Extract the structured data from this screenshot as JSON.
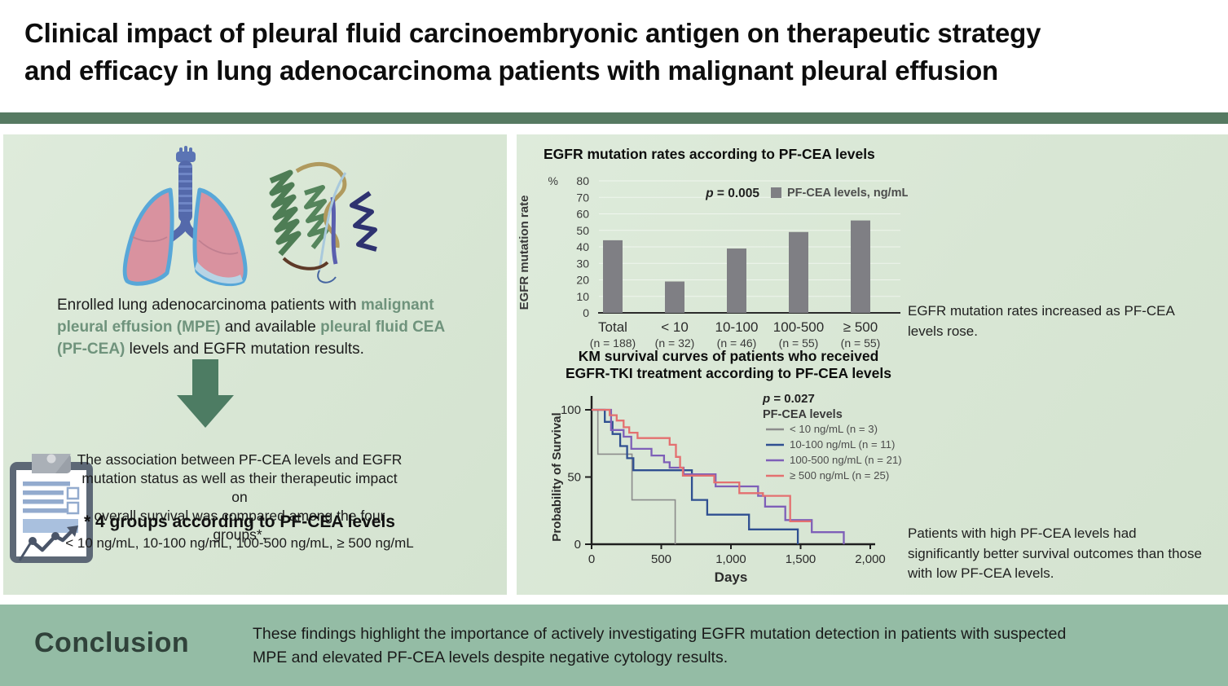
{
  "page_title": {
    "line1": "Clinical impact of pleural fluid carcinoembryonic antigen on therapeutic strategy",
    "line2": "and efficacy in lung adenocarcinoma patients with malignant pleural effusion"
  },
  "left_panel": {
    "enrollment": {
      "part1": "Enrolled lung adenocarcinoma patients with ",
      "highlight1": "malignant pleural effusion (MPE)",
      "part2": " and available ",
      "highlight2": "pleural fluid CEA (PF-CEA)",
      "part3": " levels and EGFR mutation results."
    },
    "association_lines": [
      "The association between PF-CEA levels and EGFR",
      "mutation status as well as their therapeutic impact on",
      "overall survival was compared among the four groups*."
    ],
    "groups_heading": "* 4 groups according to PF-CEA levels",
    "groups_list": "< 10 ng/mL, 10-100 ng/mL, 100-500 ng/mL, ≥ 500 ng/mL",
    "icons": [
      "lungs-illustration",
      "cea-protein-illustration",
      "down-arrow",
      "clipboard-chart-icon"
    ]
  },
  "right_panel": {
    "bar_caption_lines": [
      "EGFR mutation rates increased as PF-CEA",
      "levels rose."
    ],
    "km_caption_lines": [
      "Patients with high PF-CEA levels had",
      "significantly better survival outcomes than those",
      "with low PF-CEA levels."
    ]
  },
  "conclusion": {
    "label": "Conclusion",
    "text_lines": [
      "These findings highlight the importance of actively investigating EGFR mutation detection in patients with suspected",
      "MPE and elevated PF-CEA levels despite negative cytology results."
    ]
  },
  "colors": {
    "panel_bg": "#d8e6d4",
    "divider_bar": "#567a62",
    "conclusion_bar": "#94bca5",
    "accent_green_text": "#6f937c",
    "arrow_green": "#4d7c63",
    "bar_gray": "#7f7f84",
    "km_gray": "#8c8c8c",
    "km_blue": "#2f4f91",
    "km_purple": "#7e5fb8",
    "km_red": "#e47070"
  },
  "chart_data": [
    {
      "type": "bar",
      "title": "EGFR mutation rates according to PF-CEA levels",
      "p_label": "p = 0.005",
      "legend_label": "PF-CEA levels, ng/mL",
      "unit_symbol": "%",
      "ylabel": "EGFR mutation rate",
      "categories": [
        "Total",
        "< 10",
        "10-100",
        "100-500",
        "≥ 500"
      ],
      "group_counts": [
        "(n = 188)",
        "(n = 32)",
        "(n = 46)",
        "(n = 55)",
        "(n = 55)"
      ],
      "values": [
        44,
        19,
        39,
        49,
        56
      ],
      "ylim": [
        0,
        80
      ],
      "ytick_step": 10,
      "grid": true,
      "bar_color": "#7f7f84",
      "legend_position": "top-right"
    },
    {
      "type": "line",
      "subtype": "kaplan-meier-step",
      "title": "KM survival curves of patients who received EGFR-TKI treatment according to PF-CEA levels",
      "title_lines": [
        "KM survival curves of patients who received",
        "EGFR-TKI treatment according to PF-CEA levels"
      ],
      "p_label": "p = 0.027",
      "legend_title": "PF-CEA levels",
      "xlabel": "Days",
      "ylabel": "Probability of Survival",
      "xlim": [
        0,
        2000
      ],
      "ylim": [
        0,
        100
      ],
      "xticks": [
        {
          "value": 0,
          "label": "0"
        },
        {
          "value": 500,
          "label": "500"
        },
        {
          "value": 1000,
          "label": "1,000"
        },
        {
          "value": 1500,
          "label": "1,500"
        },
        {
          "value": 2000,
          "label": "2,000"
        }
      ],
      "yticks": [
        {
          "value": 0,
          "label": "0"
        },
        {
          "value": 50,
          "label": "50"
        },
        {
          "value": 100,
          "label": "100"
        }
      ],
      "legend_position": "top-right",
      "series": [
        {
          "name": "< 10 ng/mL (n = 3)",
          "color": "#8c8c8c",
          "points": [
            [
              0,
              100
            ],
            [
              45,
              100
            ],
            [
              45,
              67
            ],
            [
              290,
              67
            ],
            [
              290,
              33
            ],
            [
              600,
              33
            ],
            [
              600,
              0
            ]
          ]
        },
        {
          "name": "10-100 ng/mL (n = 11)",
          "color": "#2f4f91",
          "points": [
            [
              0,
              100
            ],
            [
              95,
              100
            ],
            [
              95,
              91
            ],
            [
              150,
              91
            ],
            [
              150,
              82
            ],
            [
              205,
              82
            ],
            [
              205,
              73
            ],
            [
              255,
              73
            ],
            [
              255,
              64
            ],
            [
              300,
              64
            ],
            [
              300,
              55
            ],
            [
              720,
              55
            ],
            [
              720,
              33
            ],
            [
              830,
              33
            ],
            [
              830,
              22
            ],
            [
              1130,
              22
            ],
            [
              1130,
              11
            ],
            [
              1480,
              11
            ],
            [
              1480,
              0
            ]
          ]
        },
        {
          "name": "100-500 ng/mL (n = 21)",
          "color": "#7e5fb8",
          "points": [
            [
              0,
              100
            ],
            [
              140,
              100
            ],
            [
              140,
              85
            ],
            [
              230,
              85
            ],
            [
              230,
              80
            ],
            [
              285,
              80
            ],
            [
              285,
              71
            ],
            [
              430,
              71
            ],
            [
              430,
              66
            ],
            [
              520,
              66
            ],
            [
              520,
              61
            ],
            [
              560,
              61
            ],
            [
              560,
              57
            ],
            [
              660,
              57
            ],
            [
              660,
              52
            ],
            [
              890,
              52
            ],
            [
              890,
              43
            ],
            [
              1195,
              43
            ],
            [
              1195,
              36
            ],
            [
              1245,
              36
            ],
            [
              1245,
              28
            ],
            [
              1390,
              28
            ],
            [
              1390,
              18
            ],
            [
              1580,
              18
            ],
            [
              1580,
              9
            ],
            [
              1810,
              9
            ],
            [
              1810,
              0
            ]
          ]
        },
        {
          "name": "≥ 500 ng/mL (n = 25)",
          "color": "#e47070",
          "points": [
            [
              0,
              100
            ],
            [
              130,
              100
            ],
            [
              130,
              96
            ],
            [
              180,
              96
            ],
            [
              180,
              92
            ],
            [
              230,
              92
            ],
            [
              230,
              87
            ],
            [
              270,
              87
            ],
            [
              270,
              83
            ],
            [
              330,
              83
            ],
            [
              330,
              79
            ],
            [
              560,
              79
            ],
            [
              560,
              74
            ],
            [
              605,
              74
            ],
            [
              605,
              65
            ],
            [
              635,
              65
            ],
            [
              635,
              57
            ],
            [
              655,
              57
            ],
            [
              655,
              51
            ],
            [
              880,
              51
            ],
            [
              880,
              46
            ],
            [
              1060,
              46
            ],
            [
              1060,
              38
            ],
            [
              1230,
              38
            ],
            [
              1230,
              36
            ],
            [
              1425,
              36
            ],
            [
              1425,
              17
            ],
            [
              1575,
              17
            ]
          ]
        }
      ]
    }
  ]
}
